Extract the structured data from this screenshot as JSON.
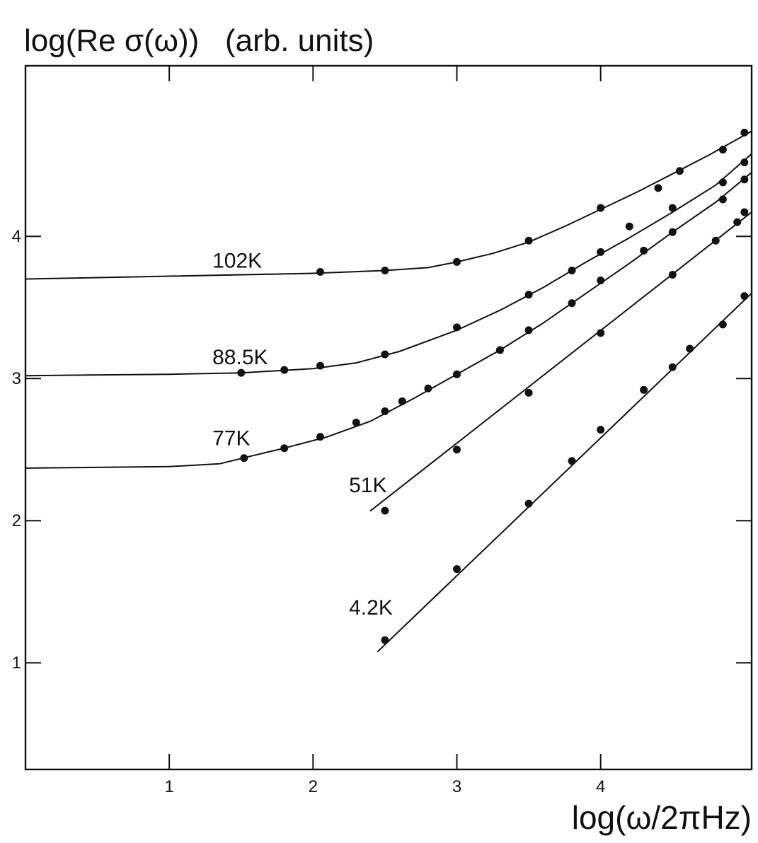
{
  "chart_data": {
    "type": "line",
    "title": "",
    "ylabel": "log(Re σ(ω))   (arb. units)",
    "xlabel": "log(ω/2πHz)",
    "xlim": [
      0,
      5.05
    ],
    "ylim": [
      0.25,
      5.2
    ],
    "x_ticks": [
      1,
      2,
      3,
      4
    ],
    "y_ticks": [
      1,
      2,
      3,
      4
    ],
    "grid": false,
    "legend": "none",
    "series": [
      {
        "name": "102K",
        "label_at": [
          1.3,
          3.78
        ],
        "points": [
          [
            2.05,
            3.75
          ],
          [
            2.5,
            3.76
          ],
          [
            3.0,
            3.82
          ],
          [
            3.5,
            3.97
          ],
          [
            4.0,
            4.2
          ],
          [
            4.4,
            4.34
          ],
          [
            4.55,
            4.46
          ],
          [
            4.85,
            4.61
          ],
          [
            5.0,
            4.73
          ]
        ],
        "fit": [
          [
            0,
            3.7
          ],
          [
            1.0,
            3.72
          ],
          [
            2.0,
            3.74
          ],
          [
            2.5,
            3.76
          ],
          [
            2.8,
            3.78
          ],
          [
            3.0,
            3.82
          ],
          [
            3.25,
            3.88
          ],
          [
            3.5,
            3.96
          ],
          [
            3.75,
            4.07
          ],
          [
            4.0,
            4.19
          ],
          [
            4.25,
            4.31
          ],
          [
            4.5,
            4.44
          ],
          [
            4.75,
            4.57
          ],
          [
            5.05,
            4.74
          ]
        ]
      },
      {
        "name": "88.5K",
        "label_at": [
          1.3,
          3.1
        ],
        "points": [
          [
            1.5,
            3.04
          ],
          [
            1.8,
            3.06
          ],
          [
            2.05,
            3.09
          ],
          [
            2.5,
            3.17
          ],
          [
            3.0,
            3.36
          ],
          [
            3.5,
            3.59
          ],
          [
            3.8,
            3.76
          ],
          [
            4.0,
            3.89
          ],
          [
            4.2,
            4.07
          ],
          [
            4.5,
            4.2
          ],
          [
            4.85,
            4.38
          ],
          [
            5.0,
            4.52
          ]
        ],
        "fit": [
          [
            0,
            3.02
          ],
          [
            1.0,
            3.03
          ],
          [
            1.5,
            3.04
          ],
          [
            2.0,
            3.07
          ],
          [
            2.3,
            3.11
          ],
          [
            2.6,
            3.19
          ],
          [
            3.0,
            3.34
          ],
          [
            3.3,
            3.48
          ],
          [
            3.6,
            3.64
          ],
          [
            3.9,
            3.82
          ],
          [
            4.2,
            3.99
          ],
          [
            4.5,
            4.17
          ],
          [
            4.8,
            4.36
          ],
          [
            5.05,
            4.58
          ]
        ]
      },
      {
        "name": "77K",
        "label_at": [
          1.3,
          2.53
        ],
        "points": [
          [
            1.52,
            2.44
          ],
          [
            1.8,
            2.51
          ],
          [
            2.05,
            2.59
          ],
          [
            2.3,
            2.69
          ],
          [
            2.5,
            2.77
          ],
          [
            2.62,
            2.84
          ],
          [
            2.8,
            2.93
          ],
          [
            3.0,
            3.03
          ],
          [
            3.3,
            3.2
          ],
          [
            3.5,
            3.34
          ],
          [
            3.8,
            3.53
          ],
          [
            4.0,
            3.69
          ],
          [
            4.3,
            3.9
          ],
          [
            4.5,
            4.03
          ],
          [
            4.85,
            4.26
          ],
          [
            5.0,
            4.4
          ]
        ],
        "fit": [
          [
            0,
            2.37
          ],
          [
            1.0,
            2.38
          ],
          [
            1.35,
            2.4
          ],
          [
            1.55,
            2.45
          ],
          [
            1.8,
            2.51
          ],
          [
            2.1,
            2.59
          ],
          [
            2.4,
            2.7
          ],
          [
            2.7,
            2.86
          ],
          [
            3.0,
            3.03
          ],
          [
            3.3,
            3.2
          ],
          [
            3.6,
            3.39
          ],
          [
            3.9,
            3.6
          ],
          [
            4.2,
            3.81
          ],
          [
            4.5,
            4.03
          ],
          [
            4.8,
            4.24
          ],
          [
            5.05,
            4.45
          ]
        ]
      },
      {
        "name": "51K",
        "label_at": [
          2.25,
          2.2
        ],
        "points": [
          [
            2.5,
            2.07
          ],
          [
            3.0,
            2.5
          ],
          [
            3.5,
            2.9
          ],
          [
            4.0,
            3.32
          ],
          [
            4.5,
            3.73
          ],
          [
            4.8,
            3.97
          ],
          [
            4.95,
            4.1
          ],
          [
            5.0,
            4.17
          ]
        ],
        "fit": [
          [
            2.4,
            2.07
          ],
          [
            5.05,
            4.17
          ]
        ]
      },
      {
        "name": "4.2K",
        "label_at": [
          2.25,
          1.34
        ],
        "points": [
          [
            2.5,
            1.16
          ],
          [
            3.0,
            1.66
          ],
          [
            3.5,
            2.12
          ],
          [
            3.8,
            2.42
          ],
          [
            4.0,
            2.64
          ],
          [
            4.3,
            2.92
          ],
          [
            4.5,
            3.08
          ],
          [
            4.62,
            3.21
          ],
          [
            4.85,
            3.38
          ],
          [
            5.0,
            3.58
          ]
        ],
        "fit": [
          [
            2.45,
            1.08
          ],
          [
            5.05,
            3.6
          ]
        ]
      }
    ]
  }
}
